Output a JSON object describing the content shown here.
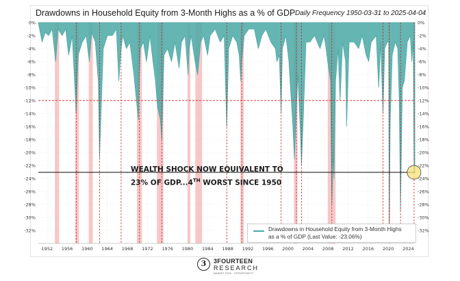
{
  "chart_data": {
    "type": "area",
    "title": "Drawdowns in Household Equity from 3-Month Highs as a % of GDP",
    "subtitle": "Daily Frequency 1950-03-31 to 2025-04-04",
    "xlim": [
      1950.25,
      2025.3
    ],
    "ylim": [
      -34,
      0
    ],
    "x_ticks": [
      1952,
      1956,
      1960,
      1964,
      1968,
      1972,
      1976,
      1980,
      1984,
      1988,
      1992,
      1996,
      2000,
      2004,
      2008,
      2012,
      2016,
      2020,
      2024
    ],
    "y_ticks": [
      0,
      -2,
      -4,
      -6,
      -8,
      -10,
      -12,
      -14,
      -16,
      -18,
      -20,
      -22,
      -24,
      -26,
      -28,
      -30,
      -32
    ],
    "y_tick_labels": [
      "0%",
      "-2%",
      "-4%",
      "-6%",
      "-8%",
      "-10%",
      "-12%",
      "-14%",
      "-16%",
      "-18%",
      "-20%",
      "-22%",
      "-24%",
      "-26%",
      "-28%",
      "-30%",
      "-32%"
    ],
    "y_axis_both_sides": true,
    "grid": true,
    "legend_position": "bottom-right",
    "series": [
      {
        "name": "Drawdowns in Household Equity from 3-Month Highs as a % of GDP (Last Value: -23.06%)",
        "color": "#4aa9a6",
        "x": [
          1950.25,
          1951.0,
          1951.6,
          1952.3,
          1953.0,
          1953.7,
          1954.2,
          1955.0,
          1955.7,
          1956.3,
          1957.0,
          1957.6,
          1957.8,
          1958.2,
          1959.0,
          1959.8,
          1960.4,
          1960.9,
          1961.6,
          1962.2,
          1962.45,
          1962.7,
          1963.2,
          1964.0,
          1965.0,
          1965.8,
          1966.3,
          1966.75,
          1967.1,
          1967.8,
          1968.5,
          1969.3,
          1969.8,
          1970.2,
          1970.4,
          1970.6,
          1971.2,
          1971.8,
          1972.5,
          1973.1,
          1973.6,
          1974.0,
          1974.6,
          1974.85,
          1975.3,
          1976.0,
          1976.8,
          1977.5,
          1978.3,
          1978.8,
          1979.5,
          1980.1,
          1980.3,
          1980.7,
          1981.5,
          1982.0,
          1982.6,
          1983.2,
          1984.0,
          1984.5,
          1985.5,
          1986.5,
          1987.3,
          1987.8,
          1988.2,
          1989.0,
          1989.8,
          1990.3,
          1990.6,
          1990.8,
          1991.3,
          1992.2,
          1993.3,
          1994.1,
          1994.8,
          1995.6,
          1996.6,
          1997.5,
          1997.8,
          1998.3,
          1998.65,
          1998.9,
          1999.6,
          2000.2,
          2000.5,
          2001.0,
          2001.3,
          2001.7,
          2002.0,
          2002.5,
          2002.7,
          2003.1,
          2003.6,
          2004.4,
          2005.3,
          2006.4,
          2007.2,
          2007.6,
          2008.1,
          2008.5,
          2008.75,
          2008.85,
          2009.0,
          2009.2,
          2009.5,
          2010.0,
          2010.4,
          2010.9,
          2011.5,
          2011.7,
          2012.2,
          2013.2,
          2014.1,
          2014.8,
          2015.6,
          2016.1,
          2016.6,
          2017.6,
          2018.1,
          2018.5,
          2018.95,
          2019.3,
          2019.8,
          2020.1,
          2020.2,
          2020.4,
          2020.8,
          2021.4,
          2021.9,
          2022.2,
          2022.45,
          2022.8,
          2023.2,
          2023.8,
          2024.4,
          2024.7,
          2025.0,
          2025.15,
          2025.3
        ],
        "y": [
          0,
          -3,
          -1.5,
          -2,
          -1,
          -6,
          -1,
          -2,
          -1,
          -5,
          -2,
          -11,
          -14,
          -5,
          -3,
          -2,
          -6,
          -1.5,
          -3,
          -9,
          -21,
          -15,
          -4,
          -2,
          -2,
          -1,
          -9,
          -4,
          -2,
          -4,
          -3,
          -8,
          -12,
          -15,
          -8,
          -4,
          -3,
          -6,
          -2,
          -6,
          -9,
          -13,
          -15,
          -18,
          -5,
          -4,
          -6,
          -3,
          -7,
          -3,
          -2,
          -8,
          -4,
          -2,
          -6,
          -8,
          -3,
          -2,
          -5,
          -2,
          -1,
          -3,
          -2,
          -16,
          -4,
          -2,
          -3,
          -5,
          -9,
          -6,
          -2,
          -1,
          -1,
          -4,
          -2,
          -1,
          -3,
          -4,
          -6,
          -5,
          -14,
          -4,
          -2,
          -6,
          -10,
          -16,
          -21,
          -13,
          -8,
          -17,
          -22,
          -14,
          -3,
          -3,
          -2,
          -4,
          -2,
          -4,
          -7,
          -9,
          -28,
          -26,
          -20,
          -24,
          -9,
          -4,
          -12,
          -3,
          -6,
          -16,
          -3,
          -3,
          -4,
          -2,
          -5,
          -6,
          -3,
          -2,
          -10,
          -3,
          -14,
          -4,
          -3,
          -3,
          -31,
          -15,
          -5,
          -3,
          -4,
          -12,
          -29,
          -10,
          -9,
          -3,
          -2,
          -6,
          -3,
          -23.06,
          -23.06
        ]
      }
    ],
    "shaded_periods": [
      [
        1953.55,
        1954.4
      ],
      [
        1957.6,
        1958.35
      ],
      [
        1960.3,
        1961.1
      ],
      [
        1969.9,
        1970.9
      ],
      [
        1973.9,
        1975.2
      ],
      [
        1980.0,
        1980.55
      ],
      [
        1981.55,
        1982.9
      ],
      [
        1990.55,
        1991.2
      ],
      [
        2001.2,
        2001.9
      ],
      [
        2007.95,
        2009.5
      ],
      [
        2020.1,
        2020.4
      ]
    ],
    "shade_color": "#f4b4b4",
    "reference_lines": [
      {
        "y": -12,
        "style": "dashed",
        "color": "#e03030"
      },
      {
        "y": -23.06,
        "style": "solid",
        "color": "#222222"
      }
    ],
    "event_lines_x": [
      1957.8,
      1962.45,
      1966.75,
      1970.4,
      1974.85,
      1987.8,
      1990.8,
      1998.65,
      2001.7,
      2002.7,
      2008.75,
      2018.95,
      2020.2,
      2022.45,
      2025.15
    ],
    "highlight_point": {
      "x": 2025.15,
      "y": -23.06
    },
    "annotation": {
      "line1": "WEALTH SHOCK NOW EQUIVALENT TO",
      "line2_pre": "23% OF GDP...4",
      "line2_sup": "TH",
      "line2_post": " WORST SINCE 1950"
    },
    "legend": {
      "line1": "Drawdowns in Household Equity from 3-Month Highs",
      "line2": "as a % of GDP (Last Value: -23.06%)"
    }
  },
  "branding": {
    "mark": "3",
    "name": "3FOURTEEN",
    "name2": "RESEARCH",
    "tagline": "MARKET RISK · OPPORTUNITY"
  }
}
